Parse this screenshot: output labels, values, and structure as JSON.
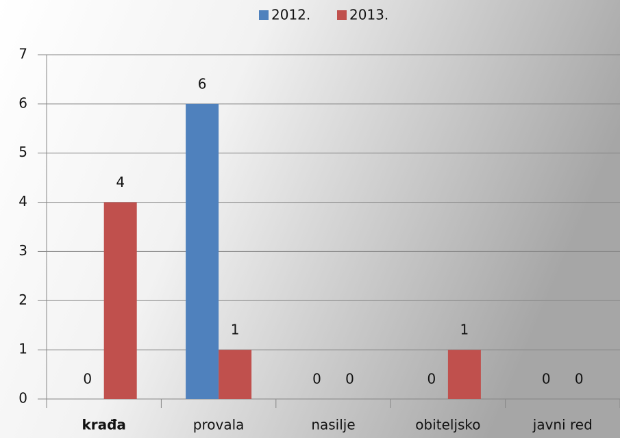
{
  "chart_data": {
    "type": "bar",
    "categories": [
      "krađa",
      "provala",
      "nasilje",
      "obiteljsko",
      "javni red"
    ],
    "series": [
      {
        "name": "2012.",
        "color": "#4f81bd",
        "values": [
          0,
          6,
          0,
          0,
          0
        ]
      },
      {
        "name": "2013.",
        "color": "#c0504d",
        "values": [
          4,
          1,
          0,
          1,
          0
        ]
      }
    ],
    "ylim": [
      0,
      7
    ],
    "yticks": [
      0,
      1,
      2,
      3,
      4,
      5,
      6,
      7
    ],
    "grid": true,
    "legend": "top"
  }
}
